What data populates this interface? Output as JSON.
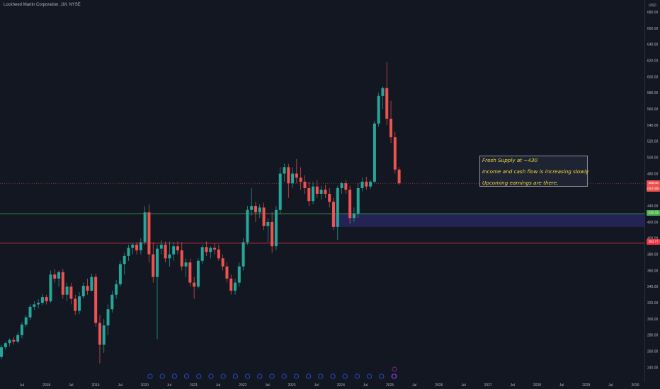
{
  "symbol": {
    "title": "Lockheed Martin Corporation, 1M, NYSE",
    "currency": "USD"
  },
  "note": {
    "lines": [
      "Fresh Supply at ~430",
      "Income and cash flow is increasing slowly",
      "Upcoming earnings are there."
    ]
  },
  "price_tags": {
    "last_close": "468.05",
    "last_close_sub": "02d 05h",
    "supply_level": "430.33",
    "support_level": "393.77"
  },
  "colors": {
    "background": "#131722",
    "up": "#26a69a",
    "down": "#ef5350",
    "supply_zone": "#242557",
    "supply_line": "#4caf50",
    "support_line": "#f23645",
    "note_text": "#f5d93a"
  },
  "chart_data": {
    "type": "candlestick",
    "title": "Lockheed Martin Corporation, 1M, NYSE",
    "currency": "USD",
    "y_ticks": [
      240,
      260,
      280,
      300,
      320,
      340,
      360,
      380,
      400,
      420,
      440,
      460,
      480,
      500,
      520,
      540,
      560,
      580,
      600,
      620,
      640,
      660,
      680
    ],
    "ylim": [
      222,
      695
    ],
    "x_ticks": [
      "Jul",
      "2018",
      "Jul",
      "2019",
      "Jul",
      "2020",
      "Jul",
      "2021",
      "Jul",
      "2022",
      "Jul",
      "2023",
      "Jul",
      "2024",
      "Jul",
      "2025",
      "Jul",
      "2026",
      "Jul",
      "2027",
      "Jul",
      "2028",
      "Jul",
      "2029",
      "Jul",
      "2030"
    ],
    "supply_zone": [
      414,
      430.33
    ],
    "support_level": 393.77,
    "grid": false,
    "candles": [
      {
        "o": 253,
        "h": 268,
        "l": 250,
        "c": 265
      },
      {
        "o": 265,
        "h": 272,
        "l": 262,
        "c": 270
      },
      {
        "o": 270,
        "h": 276,
        "l": 266,
        "c": 274
      },
      {
        "o": 274,
        "h": 278,
        "l": 268,
        "c": 272
      },
      {
        "o": 272,
        "h": 283,
        "l": 270,
        "c": 280
      },
      {
        "o": 280,
        "h": 296,
        "l": 276,
        "c": 293
      },
      {
        "o": 293,
        "h": 305,
        "l": 290,
        "c": 302
      },
      {
        "o": 302,
        "h": 318,
        "l": 299,
        "c": 315
      },
      {
        "o": 315,
        "h": 322,
        "l": 311,
        "c": 318
      },
      {
        "o": 318,
        "h": 324,
        "l": 313,
        "c": 320
      },
      {
        "o": 320,
        "h": 331,
        "l": 317,
        "c": 327
      },
      {
        "o": 327,
        "h": 330,
        "l": 318,
        "c": 322
      },
      {
        "o": 322,
        "h": 360,
        "l": 320,
        "c": 355
      },
      {
        "o": 355,
        "h": 362,
        "l": 345,
        "c": 350
      },
      {
        "o": 350,
        "h": 360,
        "l": 340,
        "c": 358
      },
      {
        "o": 358,
        "h": 362,
        "l": 325,
        "c": 330
      },
      {
        "o": 330,
        "h": 345,
        "l": 322,
        "c": 340
      },
      {
        "o": 340,
        "h": 345,
        "l": 318,
        "c": 325
      },
      {
        "o": 325,
        "h": 330,
        "l": 305,
        "c": 310
      },
      {
        "o": 310,
        "h": 333,
        "l": 306,
        "c": 328
      },
      {
        "o": 328,
        "h": 345,
        "l": 325,
        "c": 341
      },
      {
        "o": 341,
        "h": 350,
        "l": 330,
        "c": 335
      },
      {
        "o": 335,
        "h": 356,
        "l": 334,
        "c": 352
      },
      {
        "o": 352,
        "h": 356,
        "l": 290,
        "c": 295
      },
      {
        "o": 295,
        "h": 305,
        "l": 245,
        "c": 268
      },
      {
        "o": 268,
        "h": 300,
        "l": 258,
        "c": 292
      },
      {
        "o": 292,
        "h": 318,
        "l": 280,
        "c": 312
      },
      {
        "o": 312,
        "h": 335,
        "l": 308,
        "c": 330
      },
      {
        "o": 330,
        "h": 348,
        "l": 325,
        "c": 343
      },
      {
        "o": 343,
        "h": 372,
        "l": 340,
        "c": 368
      },
      {
        "o": 368,
        "h": 382,
        "l": 355,
        "c": 378
      },
      {
        "o": 378,
        "h": 392,
        "l": 372,
        "c": 388
      },
      {
        "o": 388,
        "h": 394,
        "l": 380,
        "c": 392
      },
      {
        "o": 392,
        "h": 395,
        "l": 380,
        "c": 385
      },
      {
        "o": 385,
        "h": 400,
        "l": 380,
        "c": 395
      },
      {
        "o": 395,
        "h": 440,
        "l": 392,
        "c": 432
      },
      {
        "o": 432,
        "h": 442,
        "l": 370,
        "c": 380
      },
      {
        "o": 380,
        "h": 395,
        "l": 345,
        "c": 352
      },
      {
        "o": 352,
        "h": 392,
        "l": 275,
        "c": 387
      },
      {
        "o": 387,
        "h": 398,
        "l": 380,
        "c": 392
      },
      {
        "o": 392,
        "h": 396,
        "l": 370,
        "c": 375
      },
      {
        "o": 375,
        "h": 396,
        "l": 365,
        "c": 380
      },
      {
        "o": 380,
        "h": 395,
        "l": 372,
        "c": 390
      },
      {
        "o": 390,
        "h": 396,
        "l": 380,
        "c": 385
      },
      {
        "o": 385,
        "h": 395,
        "l": 360,
        "c": 365
      },
      {
        "o": 365,
        "h": 375,
        "l": 352,
        "c": 370
      },
      {
        "o": 370,
        "h": 375,
        "l": 340,
        "c": 345
      },
      {
        "o": 345,
        "h": 352,
        "l": 325,
        "c": 340
      },
      {
        "o": 340,
        "h": 375,
        "l": 338,
        "c": 372
      },
      {
        "o": 372,
        "h": 392,
        "l": 368,
        "c": 389
      },
      {
        "o": 389,
        "h": 396,
        "l": 378,
        "c": 383
      },
      {
        "o": 383,
        "h": 390,
        "l": 375,
        "c": 388
      },
      {
        "o": 388,
        "h": 394,
        "l": 380,
        "c": 386
      },
      {
        "o": 386,
        "h": 392,
        "l": 372,
        "c": 375
      },
      {
        "o": 375,
        "h": 380,
        "l": 360,
        "c": 365
      },
      {
        "o": 365,
        "h": 370,
        "l": 345,
        "c": 350
      },
      {
        "o": 350,
        "h": 355,
        "l": 330,
        "c": 335
      },
      {
        "o": 335,
        "h": 350,
        "l": 330,
        "c": 345
      },
      {
        "o": 345,
        "h": 370,
        "l": 340,
        "c": 365
      },
      {
        "o": 365,
        "h": 400,
        "l": 360,
        "c": 395
      },
      {
        "o": 395,
        "h": 440,
        "l": 392,
        "c": 435
      },
      {
        "o": 435,
        "h": 462,
        "l": 428,
        "c": 440
      },
      {
        "o": 440,
        "h": 445,
        "l": 420,
        "c": 432
      },
      {
        "o": 432,
        "h": 442,
        "l": 425,
        "c": 438
      },
      {
        "o": 438,
        "h": 444,
        "l": 410,
        "c": 415
      },
      {
        "o": 415,
        "h": 425,
        "l": 395,
        "c": 420
      },
      {
        "o": 420,
        "h": 432,
        "l": 382,
        "c": 390
      },
      {
        "o": 390,
        "h": 440,
        "l": 385,
        "c": 435
      },
      {
        "o": 435,
        "h": 488,
        "l": 430,
        "c": 480
      },
      {
        "o": 480,
        "h": 492,
        "l": 470,
        "c": 488
      },
      {
        "o": 488,
        "h": 492,
        "l": 450,
        "c": 468
      },
      {
        "o": 468,
        "h": 488,
        "l": 462,
        "c": 480
      },
      {
        "o": 480,
        "h": 498,
        "l": 468,
        "c": 475
      },
      {
        "o": 475,
        "h": 488,
        "l": 460,
        "c": 470
      },
      {
        "o": 470,
        "h": 478,
        "l": 455,
        "c": 462
      },
      {
        "o": 462,
        "h": 470,
        "l": 440,
        "c": 446
      },
      {
        "o": 446,
        "h": 470,
        "l": 442,
        "c": 464
      },
      {
        "o": 464,
        "h": 472,
        "l": 450,
        "c": 455
      },
      {
        "o": 455,
        "h": 465,
        "l": 448,
        "c": 460
      },
      {
        "o": 460,
        "h": 466,
        "l": 450,
        "c": 455
      },
      {
        "o": 455,
        "h": 462,
        "l": 438,
        "c": 445
      },
      {
        "o": 445,
        "h": 450,
        "l": 410,
        "c": 414
      },
      {
        "o": 414,
        "h": 465,
        "l": 398,
        "c": 462
      },
      {
        "o": 462,
        "h": 470,
        "l": 455,
        "c": 468
      },
      {
        "o": 468,
        "h": 472,
        "l": 455,
        "c": 460
      },
      {
        "o": 460,
        "h": 465,
        "l": 418,
        "c": 425
      },
      {
        "o": 425,
        "h": 438,
        "l": 420,
        "c": 430
      },
      {
        "o": 430,
        "h": 468,
        "l": 425,
        "c": 462
      },
      {
        "o": 462,
        "h": 475,
        "l": 458,
        "c": 470
      },
      {
        "o": 470,
        "h": 476,
        "l": 460,
        "c": 464
      },
      {
        "o": 464,
        "h": 472,
        "l": 461,
        "c": 470
      },
      {
        "o": 470,
        "h": 545,
        "l": 468,
        "c": 542
      },
      {
        "o": 542,
        "h": 580,
        "l": 538,
        "c": 576
      },
      {
        "o": 576,
        "h": 588,
        "l": 560,
        "c": 586
      },
      {
        "o": 586,
        "h": 618,
        "l": 540,
        "c": 548
      },
      {
        "o": 548,
        "h": 570,
        "l": 518,
        "c": 525
      },
      {
        "o": 525,
        "h": 532,
        "l": 480,
        "c": 485
      },
      {
        "o": 485,
        "h": 488,
        "l": 466,
        "c": 468
      }
    ]
  }
}
